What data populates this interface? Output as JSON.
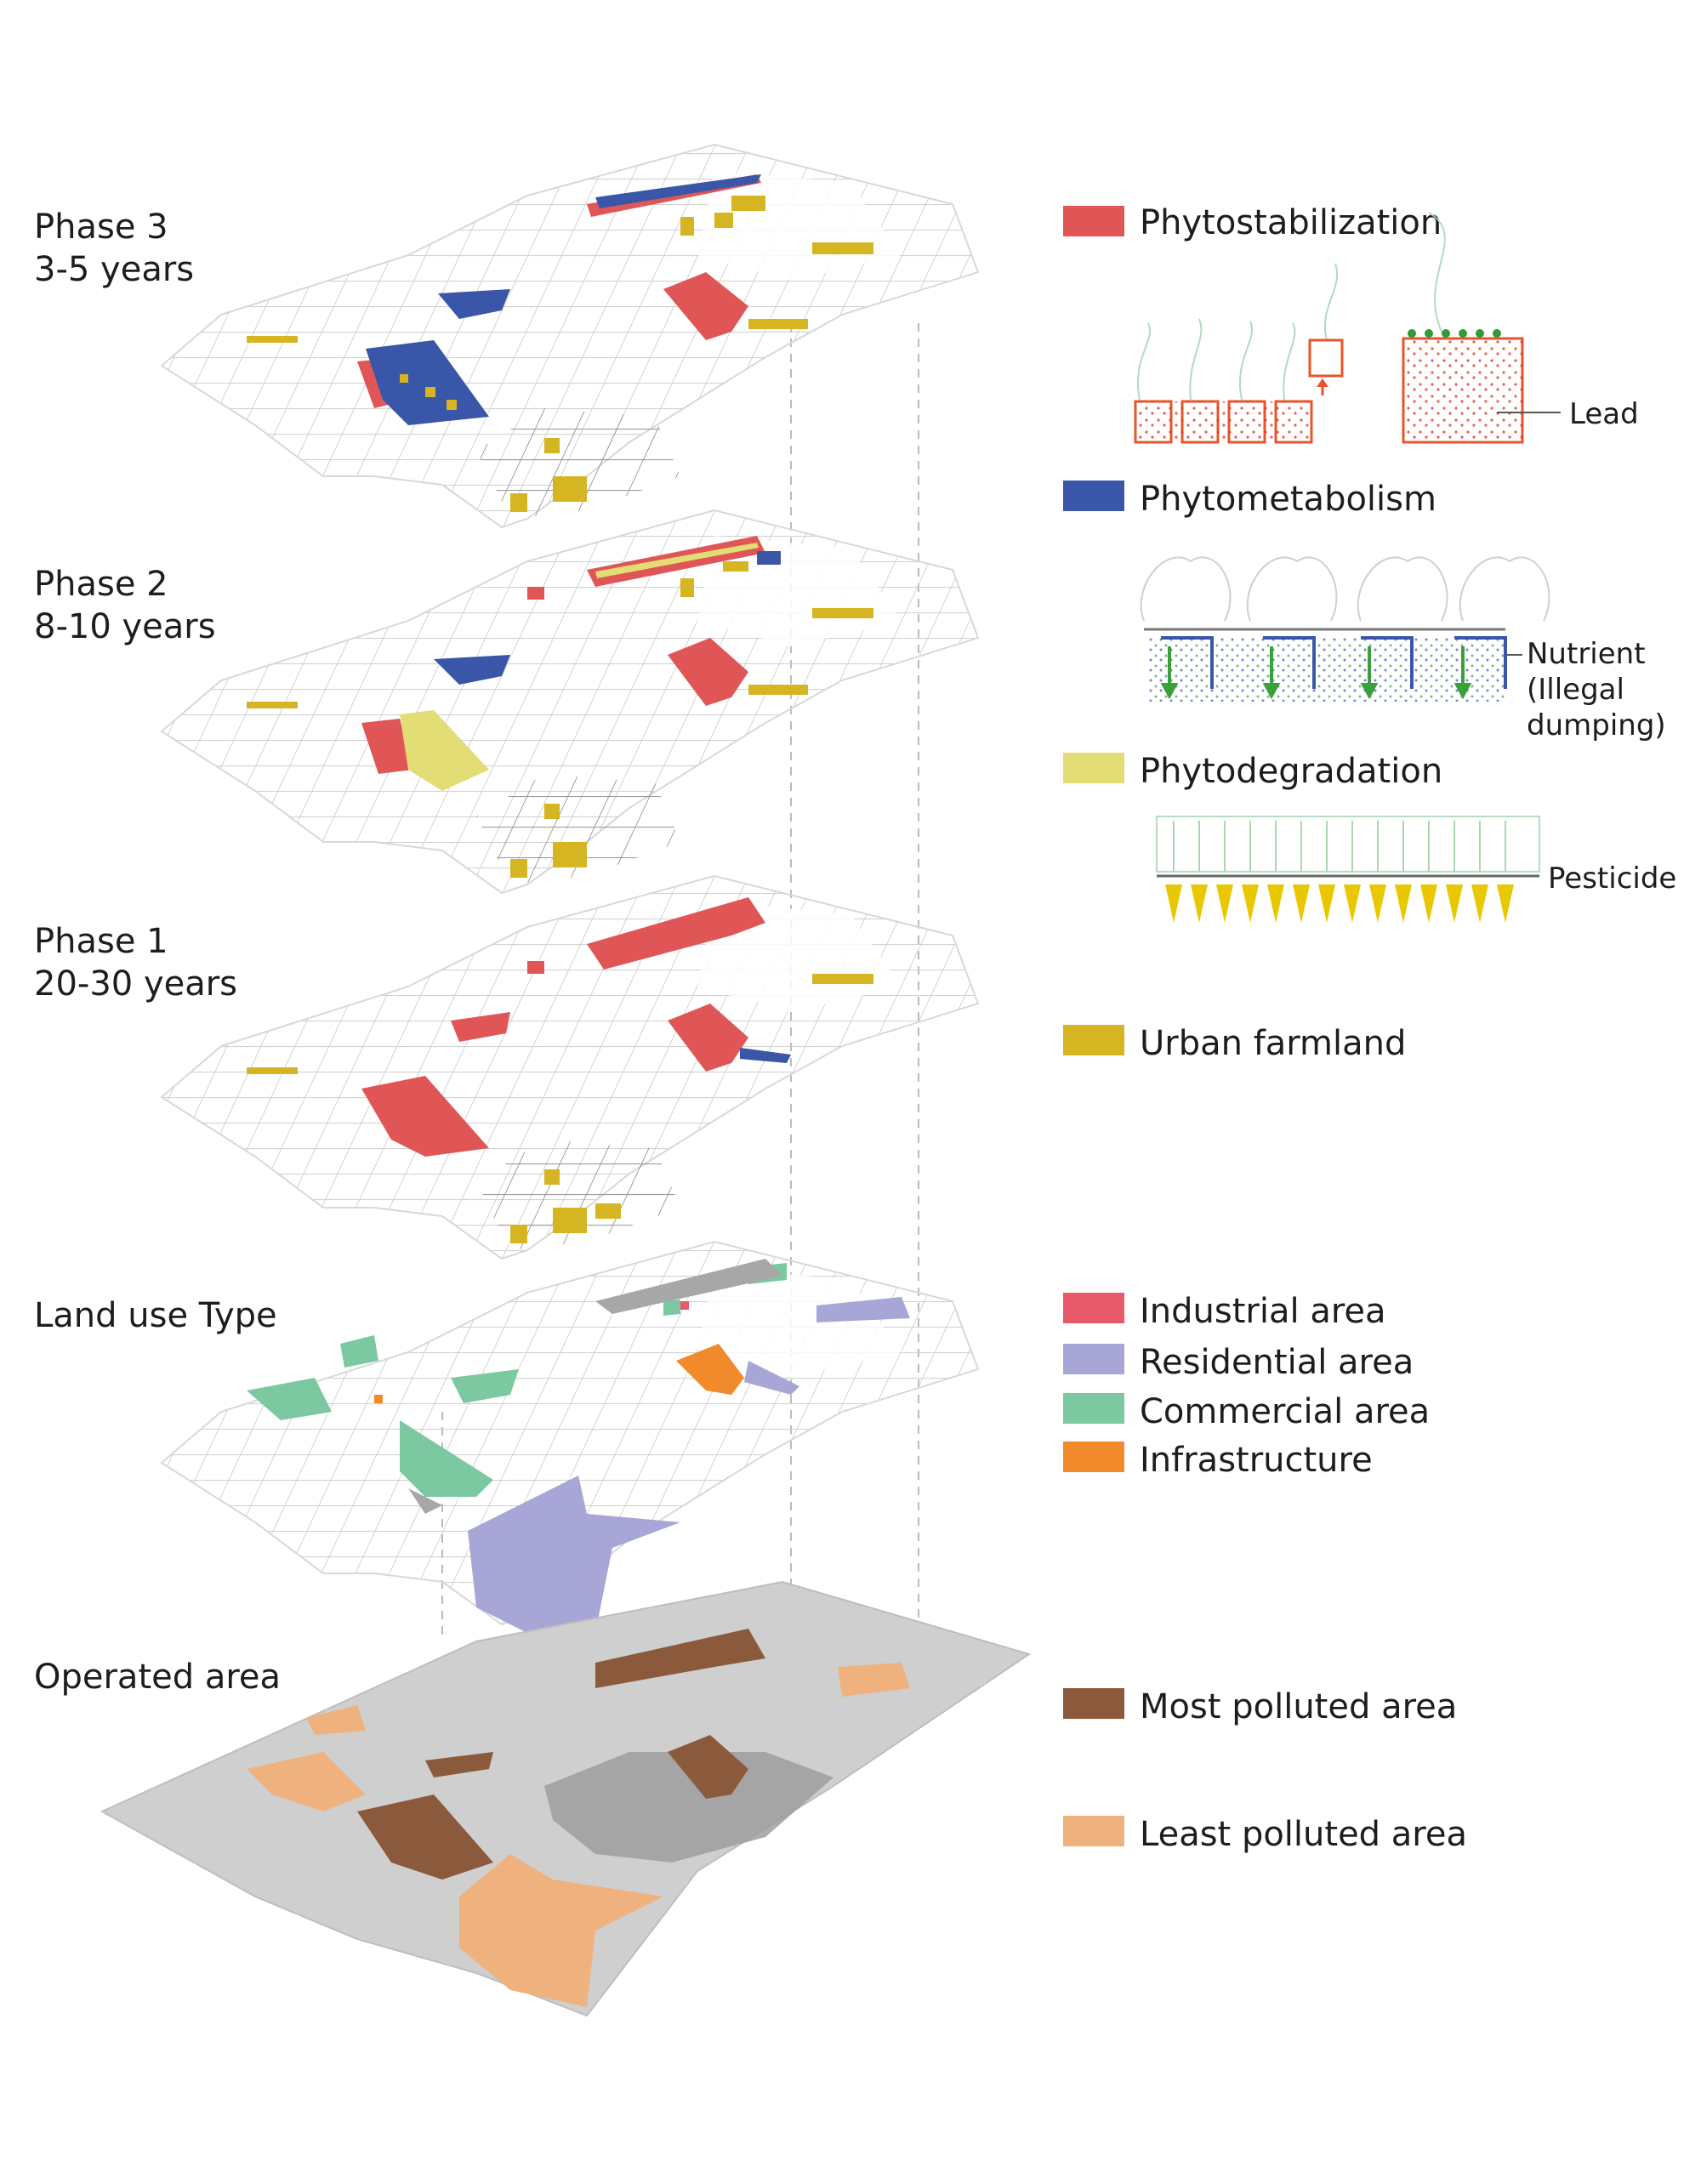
{
  "layers": [
    {
      "title": "Phase 3",
      "subtitle": "3-5 years"
    },
    {
      "title": "Phase 2",
      "subtitle": "8-10 years"
    },
    {
      "title": "Phase 1",
      "subtitle": "20-30 years"
    },
    {
      "title": "Land use Type",
      "subtitle": ""
    },
    {
      "title": "Operated area",
      "subtitle": ""
    }
  ],
  "legend": {
    "phytostabilization": {
      "label": "Phytostabilization",
      "color": "#e05555",
      "pollutant": "Lead"
    },
    "phytometabolism": {
      "label": "Phytometabolism",
      "color": "#3a56a8",
      "pollutant_lines": [
        "Nutrient",
        "(Illegal",
        "dumping)"
      ]
    },
    "phytodegradation": {
      "label": "Phytodegradation",
      "color": "#e3dd76",
      "pollutant": "Pesticide"
    },
    "urban_farmland": {
      "label": "Urban farmland",
      "color": "#d6b523"
    },
    "industrial": {
      "label": "Industrial area",
      "color": "#e85a6a"
    },
    "residential": {
      "label": "Residential area",
      "color": "#a7a6d6"
    },
    "commercial": {
      "label": "Commercial area",
      "color": "#7cc8a0"
    },
    "infrastructure": {
      "label": "Infrastructure",
      "color": "#f08a2a"
    },
    "most_polluted": {
      "label": "Most polluted area",
      "color": "#8b5a3c"
    },
    "least_polluted": {
      "label": "Least polluted area",
      "color": "#efb27e"
    }
  }
}
